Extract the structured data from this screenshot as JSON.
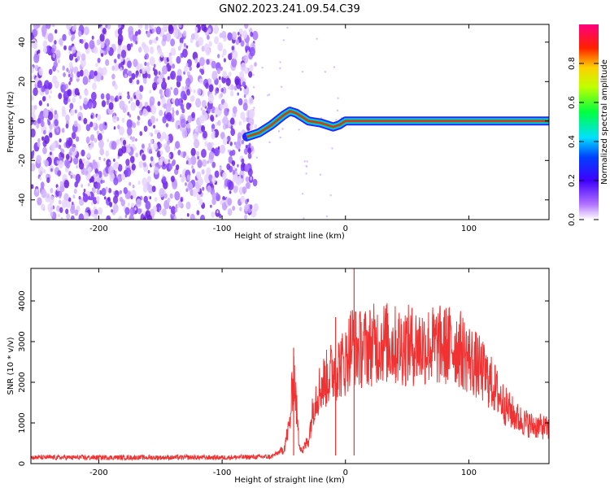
{
  "title": "GN02.2023.241.09.54.C39",
  "colors": {
    "snr_line": "#f03232",
    "track_red": "#ff2020",
    "track_green": "#00c040",
    "noise_purple": "#8a2be2"
  },
  "chart_data": [
    {
      "type": "heatmap",
      "name": "spectrogram",
      "xlabel": "Height of straight line (km)",
      "ylabel": "Frequency (Hz)",
      "xlim": [
        -255,
        165
      ],
      "ylim": [
        -50,
        49
      ],
      "xticks": [
        -200,
        -100,
        0,
        100
      ],
      "yticks": [
        -40,
        -20,
        0,
        20,
        40
      ],
      "colorbar": {
        "label": "Normalized spectral amplitude",
        "range": [
          0.0,
          1.0
        ],
        "ticks": [
          0.0,
          0.2,
          0.4,
          0.6,
          0.8
        ],
        "colormap": [
          "#ffffff",
          "#8a2be2",
          "#0000ff",
          "#00ffff",
          "#00ff00",
          "#ffff00",
          "#ff0000",
          "#ff0080"
        ]
      },
      "noise_region_x": [
        -255,
        -75
      ],
      "signal_track": {
        "x": [
          -80,
          -70,
          -60,
          -50,
          -45,
          -40,
          -35,
          -30,
          -25,
          -20,
          -15,
          -10,
          -5,
          0,
          50,
          100,
          165
        ],
        "freq": [
          -8,
          -6,
          -2,
          3,
          5,
          4,
          2,
          0,
          -0.5,
          -1,
          -2,
          -3,
          -2,
          0,
          0,
          0,
          0
        ],
        "amplitude": [
          0.4,
          0.5,
          0.5,
          0.6,
          0.7,
          0.75,
          0.8,
          0.85,
          0.85,
          0.85,
          0.85,
          0.8,
          0.85,
          0.95,
          0.95,
          0.95,
          0.95
        ]
      }
    },
    {
      "type": "line",
      "name": "snr",
      "xlabel": "Height of straight line (km)",
      "ylabel": "SNR (10 * v/v)",
      "xlim": [
        -255,
        165
      ],
      "ylim": [
        0,
        4800
      ],
      "xticks": [
        -200,
        -100,
        0,
        100
      ],
      "yticks": [
        0,
        1000,
        2000,
        3000,
        4000
      ],
      "series": [
        {
          "x": [
            -255,
            -200,
            -150,
            -100,
            -60,
            -50,
            -45,
            -42,
            -40,
            -38,
            -35,
            -30,
            -25,
            -20,
            -15,
            -10,
            -5,
            0,
            5,
            10,
            20,
            30,
            40,
            50,
            60,
            70,
            80,
            90,
            100,
            110,
            120,
            130,
            140,
            150,
            160,
            165
          ],
          "values": [
            150,
            150,
            150,
            150,
            170,
            350,
            1000,
            2300,
            1500,
            600,
            300,
            600,
            1600,
            1900,
            2100,
            2300,
            2400,
            2500,
            3000,
            2800,
            2900,
            3000,
            2900,
            2900,
            2900,
            2900,
            2900,
            2900,
            2600,
            2300,
            1900,
            1400,
            1100,
            950,
            900,
            850
          ]
        }
      ],
      "peaks": [
        {
          "x": 7,
          "y": 4800
        },
        {
          "x": -42,
          "y": 2850
        },
        {
          "x": -8,
          "y": 3600
        }
      ]
    }
  ]
}
